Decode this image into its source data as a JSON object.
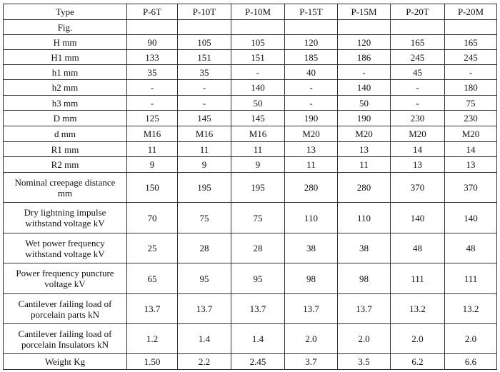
{
  "table": {
    "header": [
      "Type",
      "P-6T",
      "P-10T",
      "P-10M",
      "P-15T",
      "P-15M",
      "P-20T",
      "P-20M"
    ],
    "rows": [
      {
        "label": "Fig.",
        "values": [
          "",
          "",
          "",
          "",
          "",
          "",
          ""
        ]
      },
      {
        "label": "H mm",
        "values": [
          "90",
          "105",
          "105",
          "120",
          "120",
          "165",
          "165"
        ]
      },
      {
        "label": "H1 mm",
        "values": [
          "133",
          "151",
          "151",
          "185",
          "186",
          "245",
          "245"
        ]
      },
      {
        "label": "h1 mm",
        "values": [
          "35",
          "35",
          "-",
          "40",
          "-",
          "45",
          "-"
        ]
      },
      {
        "label": "h2 mm",
        "values": [
          "-",
          "-",
          "140",
          "-",
          "140",
          "-",
          "180"
        ]
      },
      {
        "label": "h3 mm",
        "values": [
          "-",
          "-",
          "50",
          "-",
          "50",
          "-",
          "75"
        ]
      },
      {
        "label": "D mm",
        "values": [
          "125",
          "145",
          "145",
          "190",
          "190",
          "230",
          "230"
        ]
      },
      {
        "label": "d mm",
        "values": [
          "M16",
          "M16",
          "M16",
          "M20",
          "M20",
          "M20",
          "M20"
        ]
      },
      {
        "label": "R1 mm",
        "values": [
          "11",
          "11",
          "11",
          "13",
          "13",
          "14",
          "14"
        ]
      },
      {
        "label": "R2 mm",
        "values": [
          "9",
          "9",
          "9",
          "11",
          "11",
          "13",
          "13"
        ]
      },
      {
        "label": "Nominal creepage distance\nmm",
        "values": [
          "150",
          "195",
          "195",
          "280",
          "280",
          "370",
          "370"
        ]
      },
      {
        "label": "Dry lightning impulse\nwithstand voltage kV",
        "values": [
          "70",
          "75",
          "75",
          "110",
          "110",
          "140",
          "140"
        ]
      },
      {
        "label": "Wet power frequency\nwithstand voltage kV",
        "values": [
          "25",
          "28",
          "28",
          "38",
          "38",
          "48",
          "48"
        ]
      },
      {
        "label": "Power frequency puncture\nvoltage kV",
        "values": [
          "65",
          "95",
          "95",
          "98",
          "98",
          "111",
          "111"
        ]
      },
      {
        "label": "Cantilever failing load of\nporcelain parts    kN",
        "values": [
          "13.7",
          "13.7",
          "13.7",
          "13.7",
          "13.7",
          "13.2",
          "13.2"
        ]
      },
      {
        "label": "Cantilever failing load of\nporcelain Insulators kN",
        "values": [
          "1.2",
          "1.4",
          "1.4",
          "2.0",
          "2.0",
          "2.0",
          "2.0"
        ]
      },
      {
        "label": "Weight Kg",
        "values": [
          "1.50",
          "2.2",
          "2.45",
          "3.7",
          "3.5",
          "6.2",
          "6.6"
        ]
      }
    ]
  }
}
